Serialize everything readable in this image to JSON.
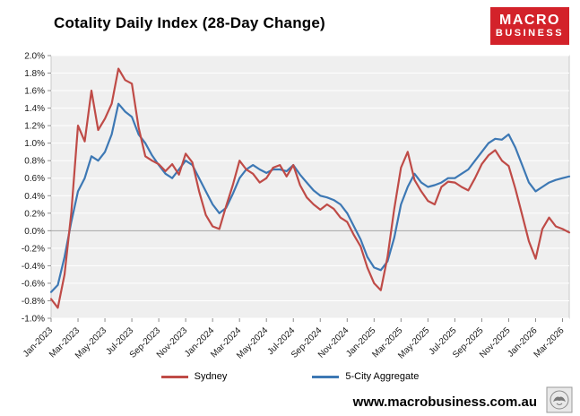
{
  "header": {
    "title": "Cotality Daily Index (28-Day Change)"
  },
  "logo": {
    "line1": "MACRO",
    "line2": "BUSINESS",
    "bg_color": "#d3222a"
  },
  "footer": {
    "url": "www.macrobusiness.com.au"
  },
  "legend": [
    {
      "label": "Sydney",
      "color": "#bf4b47"
    },
    {
      "label": "5-City Aggregate",
      "color": "#3d78b4"
    }
  ],
  "chart_data": {
    "type": "line",
    "title": "Cotality Daily Index (28-Day Change)",
    "xlabel": "",
    "ylabel": "",
    "ylim": [
      -1.0,
      2.0
    ],
    "ytick_step": 0.2,
    "ytick_format": "percent_1dp",
    "grid": "zero-line-only",
    "legend_position": "bottom",
    "plot_bg": "#efefef",
    "x_tick_labels": [
      "Jan-2023",
      "Mar-2023",
      "May-2023",
      "Jul-2023",
      "Sep-2023",
      "Nov-2023",
      "Jan-2024",
      "Mar-2024",
      "May-2024",
      "Jul-2024",
      "Sep-2024",
      "Nov-2024",
      "Jan-2025",
      "Mar-2025",
      "May-2025",
      "Jul-2025",
      "Sep-2025",
      "Nov-2025",
      "Jan-2026",
      "Mar-2026"
    ],
    "x_tick_every_months": 2,
    "x_step_months": 0.5,
    "series": [
      {
        "name": "Sydney",
        "color": "#bf4b47",
        "values": [
          -0.78,
          -0.88,
          -0.5,
          0.2,
          1.2,
          1.02,
          1.6,
          1.15,
          1.28,
          1.45,
          1.85,
          1.72,
          1.68,
          1.18,
          0.85,
          0.8,
          0.76,
          0.68,
          0.76,
          0.64,
          0.88,
          0.78,
          0.45,
          0.18,
          0.05,
          0.02,
          0.28,
          0.52,
          0.8,
          0.7,
          0.65,
          0.55,
          0.6,
          0.72,
          0.75,
          0.62,
          0.75,
          0.52,
          0.38,
          0.3,
          0.24,
          0.3,
          0.25,
          0.15,
          0.1,
          -0.05,
          -0.18,
          -0.42,
          -0.6,
          -0.68,
          -0.3,
          0.25,
          0.72,
          0.9,
          0.58,
          0.45,
          0.34,
          0.3,
          0.5,
          0.56,
          0.55,
          0.5,
          0.46,
          0.6,
          0.76,
          0.86,
          0.92,
          0.8,
          0.74,
          0.48,
          0.18,
          -0.12,
          -0.32,
          0.02,
          0.15,
          0.05,
          0.02,
          -0.02
        ]
      },
      {
        "name": "5-City Aggregate",
        "color": "#3d78b4",
        "values": [
          -0.7,
          -0.62,
          -0.3,
          0.1,
          0.45,
          0.6,
          0.85,
          0.8,
          0.9,
          1.1,
          1.45,
          1.36,
          1.3,
          1.1,
          1.0,
          0.86,
          0.75,
          0.65,
          0.6,
          0.7,
          0.8,
          0.75,
          0.6,
          0.45,
          0.3,
          0.2,
          0.26,
          0.42,
          0.6,
          0.7,
          0.75,
          0.7,
          0.66,
          0.7,
          0.7,
          0.68,
          0.75,
          0.64,
          0.55,
          0.46,
          0.4,
          0.38,
          0.35,
          0.3,
          0.2,
          0.05,
          -0.1,
          -0.3,
          -0.42,
          -0.45,
          -0.35,
          -0.08,
          0.3,
          0.5,
          0.65,
          0.55,
          0.5,
          0.52,
          0.55,
          0.6,
          0.6,
          0.65,
          0.7,
          0.8,
          0.9,
          1.0,
          1.05,
          1.04,
          1.1,
          0.95,
          0.75,
          0.55,
          0.45,
          0.5,
          0.55,
          0.58,
          0.6,
          0.62
        ]
      }
    ]
  }
}
